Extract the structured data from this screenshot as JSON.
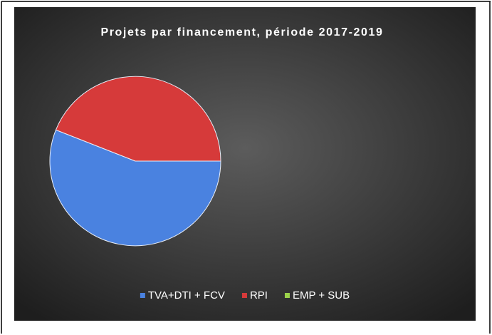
{
  "chart_data": {
    "type": "pie",
    "title": "Projets par financement, période 2017-2019",
    "categories": [
      "TVA+DTI + FCV",
      "RPI",
      "EMP + SUB"
    ],
    "values": [
      56,
      44,
      0
    ],
    "colors": [
      "#4a82e0",
      "#d63a3a",
      "#9bd24a"
    ],
    "legend": "bottom"
  }
}
